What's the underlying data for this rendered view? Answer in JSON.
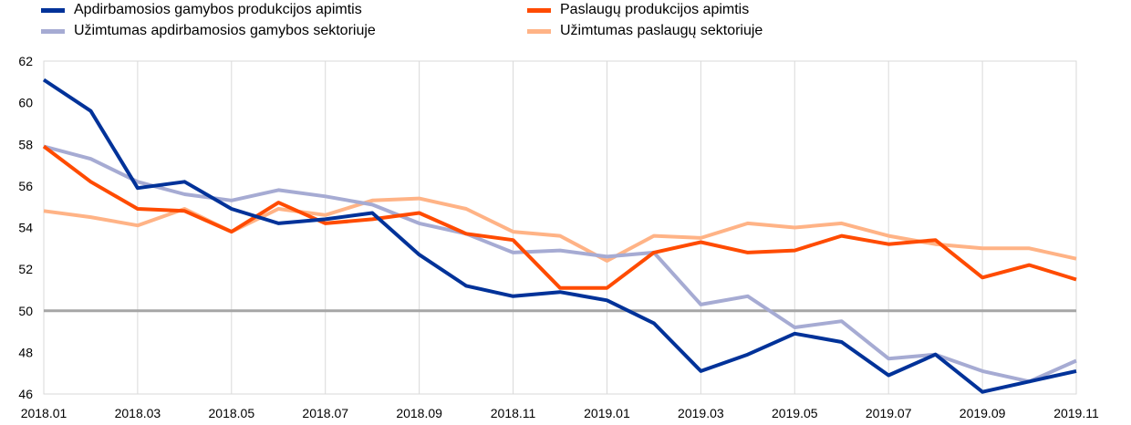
{
  "chart_data": {
    "type": "line",
    "title": "",
    "xlabel": "",
    "ylabel": "",
    "ylim": [
      46,
      62
    ],
    "yticks": [
      46,
      48,
      50,
      52,
      54,
      56,
      58,
      60,
      62
    ],
    "reference_line": 50,
    "grid": "vertical",
    "legend_position": "top",
    "x": [
      "2018.01",
      "2018.02",
      "2018.03",
      "2018.04",
      "2018.05",
      "2018.06",
      "2018.07",
      "2018.08",
      "2018.09",
      "2018.10",
      "2018.11",
      "2018.12",
      "2019.01",
      "2019.02",
      "2019.03",
      "2019.04",
      "2019.05",
      "2019.06",
      "2019.07",
      "2019.08",
      "2019.09",
      "2019.10",
      "2019.11"
    ],
    "xtick_labels": [
      "2018.01",
      "2018.03",
      "2018.05",
      "2018.07",
      "2018.09",
      "2018.11",
      "2019.01",
      "2019.03",
      "2019.05",
      "2019.07",
      "2019.09",
      "2019.11"
    ],
    "series": [
      {
        "name": "Apdirbamosios gamybos produkcijos apimtis",
        "color": "#003299",
        "values": [
          61.1,
          59.6,
          55.9,
          56.2,
          54.9,
          54.2,
          54.4,
          54.7,
          52.7,
          51.2,
          50.7,
          50.9,
          50.5,
          49.4,
          47.1,
          47.9,
          48.9,
          48.5,
          46.9,
          47.9,
          46.1,
          46.6,
          47.1
        ]
      },
      {
        "name": "Paslaugų produkcijos apimtis",
        "color": "#ff4b00",
        "values": [
          57.9,
          56.2,
          54.9,
          54.8,
          53.8,
          55.2,
          54.2,
          54.4,
          54.7,
          53.7,
          53.4,
          51.1,
          51.1,
          52.8,
          53.3,
          52.8,
          52.9,
          53.6,
          53.2,
          53.4,
          51.6,
          52.2,
          51.5
        ]
      },
      {
        "name": "Užimtumas apdirbamosios gamybos sektoriuje",
        "color": "#a6abd3",
        "values": [
          57.9,
          57.3,
          56.2,
          55.6,
          55.3,
          55.8,
          55.5,
          55.1,
          54.2,
          53.7,
          52.8,
          52.9,
          52.6,
          52.8,
          50.3,
          50.7,
          49.2,
          49.5,
          47.7,
          47.9,
          47.1,
          46.6,
          47.6
        ]
      },
      {
        "name": "Užimtumas paslaugų sektoriuje",
        "color": "#ffb386",
        "values": [
          54.8,
          54.5,
          54.1,
          54.9,
          53.8,
          54.9,
          54.6,
          55.3,
          55.4,
          54.9,
          53.8,
          53.6,
          52.4,
          53.6,
          53.5,
          54.2,
          54.0,
          54.2,
          53.6,
          53.2,
          53.0,
          53.0,
          52.5
        ]
      }
    ]
  }
}
